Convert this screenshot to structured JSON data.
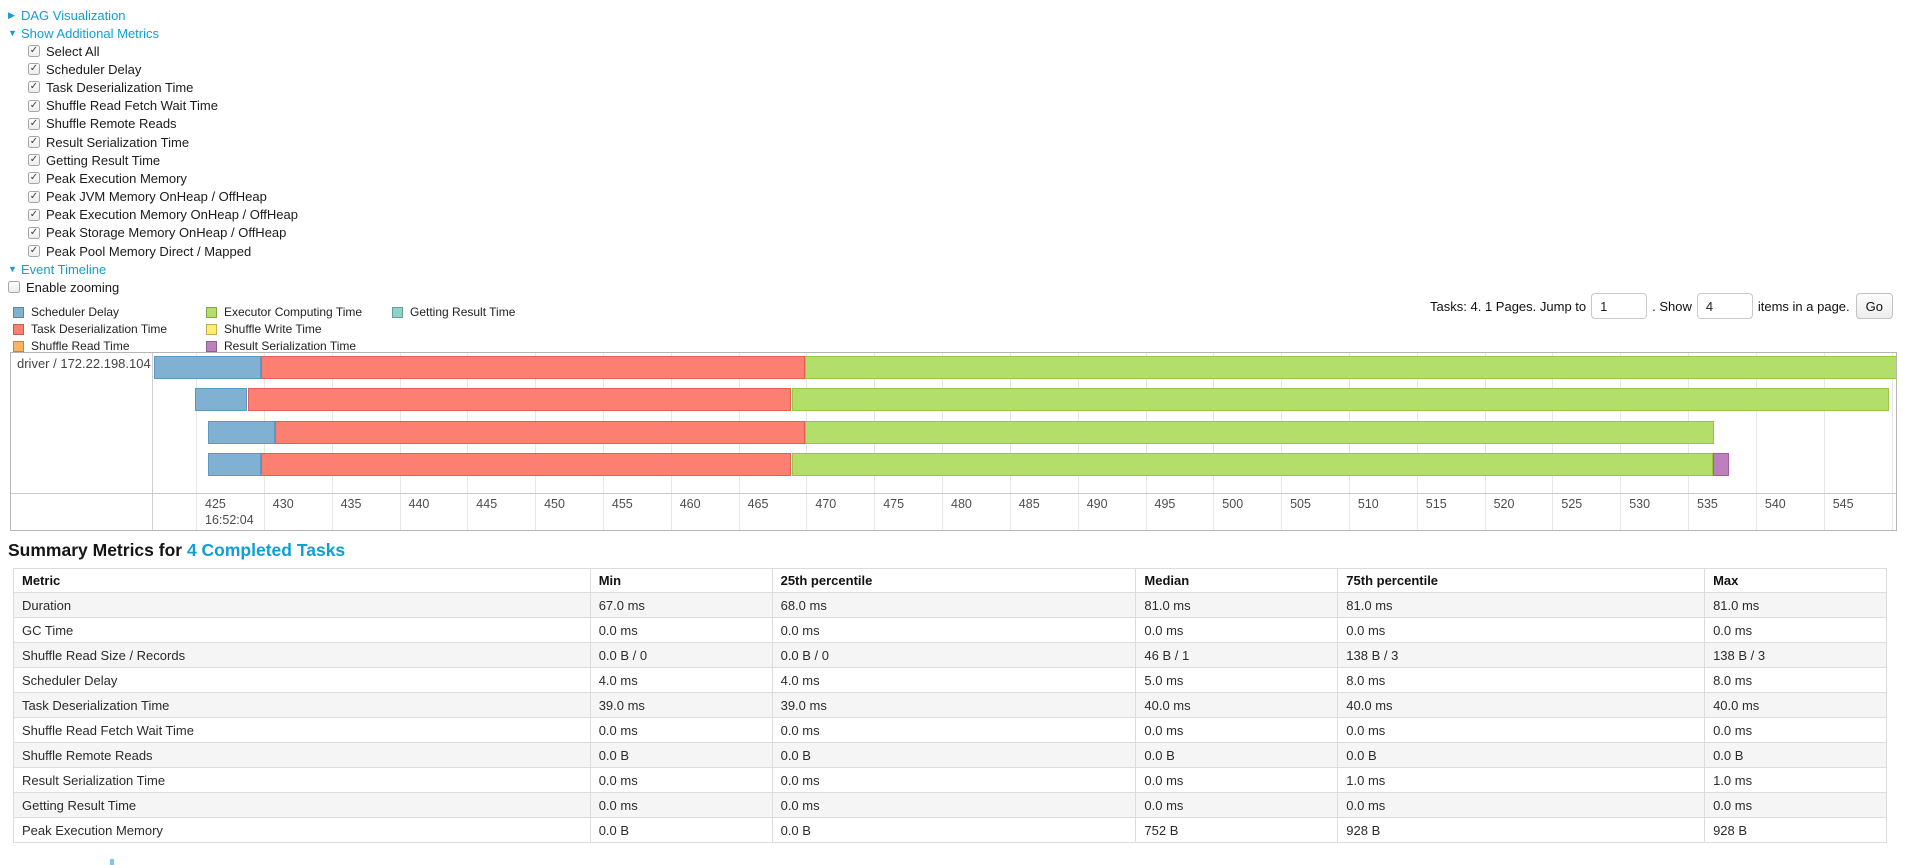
{
  "panel": {
    "dag": {
      "label": "DAG Visualization",
      "collapsed": true
    },
    "metrics_toggle": {
      "label": "Show Additional Metrics",
      "collapsed": false
    },
    "checkboxes": [
      {
        "label": "Select All",
        "checked": true
      },
      {
        "label": "Scheduler Delay",
        "checked": true
      },
      {
        "label": "Task Deserialization Time",
        "checked": true
      },
      {
        "label": "Shuffle Read Fetch Wait Time",
        "checked": true
      },
      {
        "label": "Shuffle Remote Reads",
        "checked": true
      },
      {
        "label": "Result Serialization Time",
        "checked": true
      },
      {
        "label": "Getting Result Time",
        "checked": true
      },
      {
        "label": "Peak Execution Memory",
        "checked": true
      },
      {
        "label": "Peak JVM Memory OnHeap / OffHeap",
        "checked": true
      },
      {
        "label": "Peak Execution Memory OnHeap / OffHeap",
        "checked": true
      },
      {
        "label": "Peak Storage Memory OnHeap / OffHeap",
        "checked": true
      },
      {
        "label": "Peak Pool Memory Direct / Mapped",
        "checked": true
      }
    ],
    "event_timeline": {
      "label": "Event Timeline",
      "collapsed": false
    },
    "enable_zooming": {
      "label": "Enable zooming",
      "checked": false
    }
  },
  "legend": {
    "columns": [
      [
        {
          "label": "Scheduler Delay",
          "color_key": "scheduler_delay"
        },
        {
          "label": "Task Deserialization Time",
          "color_key": "task_deserialization_time"
        },
        {
          "label": "Shuffle Read Time",
          "color_key": "shuffle_read_time"
        }
      ],
      [
        {
          "label": "Executor Computing Time",
          "color_key": "executor_computing_time"
        },
        {
          "label": "Shuffle Write Time",
          "color_key": "shuffle_write_time"
        },
        {
          "label": "Result Serialization Time",
          "color_key": "result_serialization_time"
        }
      ],
      [
        {
          "label": "Getting Result Time",
          "color_key": "getting_result_time"
        }
      ]
    ]
  },
  "pagination": {
    "text_before": "Tasks: 4. 1 Pages. Jump to",
    "jump_value": "1",
    "mid_text": ". Show",
    "show_value": "4",
    "after_text": "items in a page.",
    "go_label": "Go"
  },
  "chart_data": {
    "type": "timeline",
    "group_label": "driver / 172.22.198.104",
    "axis": {
      "base_time_label": "16:52:04",
      "tick_start": 425,
      "tick_end": 550,
      "tick_step": 5,
      "domain": [
        421.9,
        550.5
      ]
    },
    "tasks": [
      {
        "segments": [
          [
            "scheduler_delay",
            421.9,
            429.8
          ],
          [
            "task_deserialization_time",
            429.8,
            469.9
          ],
          [
            "executor_computing_time",
            469.9,
            550.5
          ]
        ]
      },
      {
        "segments": [
          [
            "scheduler_delay",
            424.9,
            428.8
          ],
          [
            "task_deserialization_time",
            428.8,
            468.9
          ],
          [
            "executor_computing_time",
            468.9,
            549.8
          ]
        ]
      },
      {
        "segments": [
          [
            "scheduler_delay",
            425.9,
            430.8
          ],
          [
            "task_deserialization_time",
            430.8,
            469.9
          ],
          [
            "executor_computing_time",
            469.9,
            536.9
          ]
        ]
      },
      {
        "segments": [
          [
            "scheduler_delay",
            425.9,
            429.8
          ],
          [
            "task_deserialization_time",
            429.8,
            468.9
          ],
          [
            "executor_computing_time",
            468.9,
            536.8
          ],
          [
            "result_serialization_time",
            536.8,
            538.0
          ]
        ]
      }
    ],
    "colors": {
      "scheduler_delay": {
        "fill": "#80B1D3",
        "border": "#5E99C2"
      },
      "task_deserialization_time": {
        "fill": "#FB8072",
        "border": "#E55F54"
      },
      "shuffle_read_time": {
        "fill": "#FDB462",
        "border": "#E89640"
      },
      "executor_computing_time": {
        "fill": "#B3DE69",
        "border": "#96C741"
      },
      "shuffle_write_time": {
        "fill": "#FFED6F",
        "border": "#E3CF4B"
      },
      "result_serialization_time": {
        "fill": "#BC80BD",
        "border": "#A35DA5"
      },
      "getting_result_time": {
        "fill": "#8DD3C7",
        "border": "#65BCAC"
      }
    }
  },
  "summary": {
    "title_prefix": "Summary Metrics for ",
    "title_link": "4 Completed Tasks",
    "table": {
      "headers": [
        "Metric",
        "Min",
        "25th percentile",
        "Median",
        "75th percentile",
        "Max"
      ],
      "rows": [
        [
          "Duration",
          "67.0 ms",
          "68.0 ms",
          "81.0 ms",
          "81.0 ms",
          "81.0 ms"
        ],
        [
          "GC Time",
          "0.0 ms",
          "0.0 ms",
          "0.0 ms",
          "0.0 ms",
          "0.0 ms"
        ],
        [
          "Shuffle Read Size / Records",
          "0.0 B / 0",
          "0.0 B / 0",
          "46 B / 1",
          "138 B / 3",
          "138 B / 3"
        ],
        [
          "Scheduler Delay",
          "4.0 ms",
          "4.0 ms",
          "5.0 ms",
          "8.0 ms",
          "8.0 ms"
        ],
        [
          "Task Deserialization Time",
          "39.0 ms",
          "39.0 ms",
          "40.0 ms",
          "40.0 ms",
          "40.0 ms"
        ],
        [
          "Shuffle Read Fetch Wait Time",
          "0.0 ms",
          "0.0 ms",
          "0.0 ms",
          "0.0 ms",
          "0.0 ms"
        ],
        [
          "Shuffle Remote Reads",
          "0.0 B",
          "0.0 B",
          "0.0 B",
          "0.0 B",
          "0.0 B"
        ],
        [
          "Result Serialization Time",
          "0.0 ms",
          "0.0 ms",
          "0.0 ms",
          "1.0 ms",
          "1.0 ms"
        ],
        [
          "Getting Result Time",
          "0.0 ms",
          "0.0 ms",
          "0.0 ms",
          "0.0 ms",
          "0.0 ms"
        ],
        [
          "Peak Execution Memory",
          "0.0 B",
          "0.0 B",
          "752 B",
          "928 B",
          "928 B"
        ]
      ]
    }
  }
}
